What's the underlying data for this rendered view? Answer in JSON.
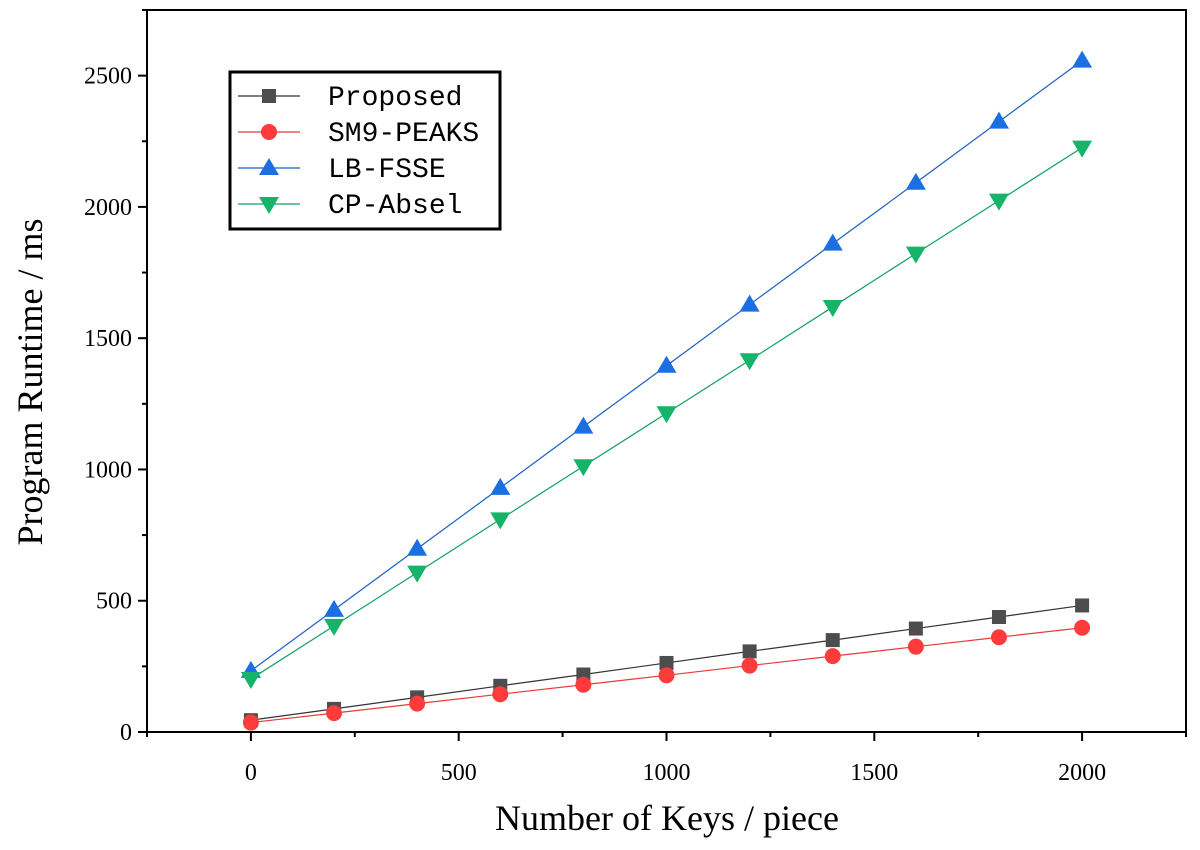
{
  "chart_data": {
    "type": "line",
    "xlabel": "Number of Keys / piece",
    "ylabel": "Program Runtime / ms",
    "xlim": [
      -250,
      2250
    ],
    "ylim": [
      0,
      2750
    ],
    "x_ticks": [
      0,
      500,
      1000,
      1500,
      2000
    ],
    "y_ticks": [
      0,
      500,
      1000,
      1500,
      2000,
      2500
    ],
    "x_minor_step": 250,
    "y_minor_step": 250,
    "grid": false,
    "legend_position": "top-left",
    "x": [
      0,
      200,
      400,
      600,
      800,
      1000,
      1200,
      1400,
      1600,
      1800,
      2000
    ],
    "series": [
      {
        "name": "Proposed",
        "marker": "square",
        "color": "#4d4d4d",
        "line_color": "#333333",
        "values": [
          45,
          88,
          132,
          176,
          219,
          263,
          307,
          350,
          394,
          438,
          482
        ]
      },
      {
        "name": "SM9-PEAKS",
        "marker": "circle",
        "color": "#ff3b3b",
        "line_color": "#e83a3a",
        "values": [
          36,
          72,
          108,
          144,
          180,
          216,
          253,
          289,
          325,
          361,
          397
        ]
      },
      {
        "name": "LB-FSSE",
        "marker": "triangle-up",
        "color": "#1b6fe0",
        "line_color": "#1b5fc4",
        "values": [
          233,
          465,
          698,
          930,
          1163,
          1395,
          1628,
          1860,
          2092,
          2325,
          2557
        ]
      },
      {
        "name": "CP-Absel",
        "marker": "triangle-down",
        "color": "#16b36a",
        "line_color": "#12a060",
        "values": [
          202,
          404,
          607,
          810,
          1012,
          1214,
          1416,
          1619,
          1822,
          2024,
          2226
        ]
      }
    ]
  }
}
